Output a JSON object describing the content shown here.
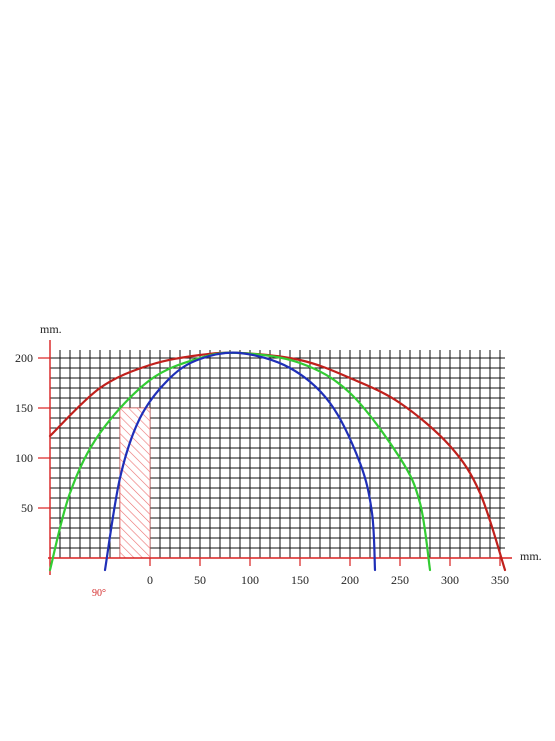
{
  "chart_data": {
    "type": "line",
    "xlabel": "mm.",
    "ylabel": "mm.",
    "xlim": [
      -100,
      355
    ],
    "ylim": [
      0,
      205
    ],
    "x_ticks": [
      0,
      50,
      100,
      150,
      200,
      250,
      300,
      350
    ],
    "y_ticks": [
      50,
      100,
      150,
      200
    ],
    "grid": true,
    "grid_step": [
      10,
      10
    ],
    "series": [
      {
        "color": "#c0201c",
        "points": [
          [
            -100,
            122
          ],
          [
            -50,
            170
          ],
          [
            0,
            193
          ],
          [
            50,
            203
          ],
          [
            90,
            205
          ],
          [
            150,
            198
          ],
          [
            200,
            180
          ],
          [
            250,
            155
          ],
          [
            300,
            112
          ],
          [
            330,
            65
          ],
          [
            355,
            -12
          ]
        ]
      },
      {
        "color": "#33cc33",
        "points": [
          [
            -100,
            -12
          ],
          [
            -80,
            65
          ],
          [
            -50,
            125
          ],
          [
            0,
            178
          ],
          [
            50,
            200
          ],
          [
            90,
            205
          ],
          [
            150,
            195
          ],
          [
            200,
            165
          ],
          [
            250,
            100
          ],
          [
            270,
            55
          ],
          [
            280,
            -12
          ]
        ]
      },
      {
        "color": "#1f2fb8",
        "points": [
          [
            -45,
            -12
          ],
          [
            -30,
            80
          ],
          [
            -10,
            140
          ],
          [
            20,
            180
          ],
          [
            50,
            199
          ],
          [
            90,
            205
          ],
          [
            140,
            190
          ],
          [
            180,
            155
          ],
          [
            210,
            95
          ],
          [
            222,
            45
          ],
          [
            225,
            -12
          ]
        ]
      }
    ],
    "shaded_region": {
      "x": [
        -30,
        0
      ],
      "y": [
        0,
        150
      ],
      "color": "#e85a5a",
      "note": "90°"
    }
  }
}
